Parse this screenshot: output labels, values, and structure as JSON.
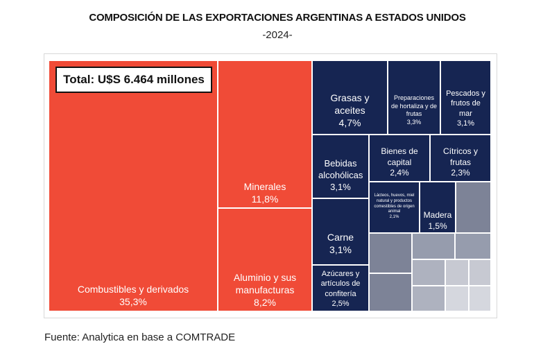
{
  "title": "COMPOSICIÓN DE LAS EXPORTACIONES ARGENTINAS A ESTADOS UNIDOS",
  "subtitle": "-2024-",
  "total_label": "Total: U$S 6.464 millones",
  "source": "Fuente: Analytica en base a COMTRADE",
  "colors": {
    "red": "#f04b37",
    "navy": "#162552",
    "gray": "#969cad"
  },
  "chart_data": {
    "type": "treemap",
    "title": "COMPOSICIÓN DE LAS EXPORTACIONES ARGENTINAS A ESTADOS UNIDOS",
    "subtitle": "-2024-",
    "total": "Total: U$S 6.464 millones",
    "unit": "%",
    "items": [
      {
        "name": "Combustibles y derivados",
        "value": "35,3%"
      },
      {
        "name": "Minerales",
        "value": "11,8%"
      },
      {
        "name": "Aluminio y sus manufacturas",
        "value": "8,2%"
      },
      {
        "name": "Grasas y aceites",
        "value": "4,7%"
      },
      {
        "name": "Preparaciones de hortaliza y de frutas",
        "value": "3,3%"
      },
      {
        "name": "Pescados y frutos de mar",
        "value": "3,1%"
      },
      {
        "name": "Bebidas alcohólicas",
        "value": "3,1%"
      },
      {
        "name": "Bienes de capital",
        "value": "2,4%"
      },
      {
        "name": "Cítricos y frutas",
        "value": "2,3%"
      },
      {
        "name": "Lácteos, huevos, miel natural y productos comestibles de origen animal",
        "value": "2,1%"
      },
      {
        "name": "Madera",
        "value": "1,5%"
      },
      {
        "name": "Carne",
        "value": "3,1%"
      },
      {
        "name": "Azúcares y artículos de confitería",
        "value": "2,5%"
      }
    ]
  }
}
